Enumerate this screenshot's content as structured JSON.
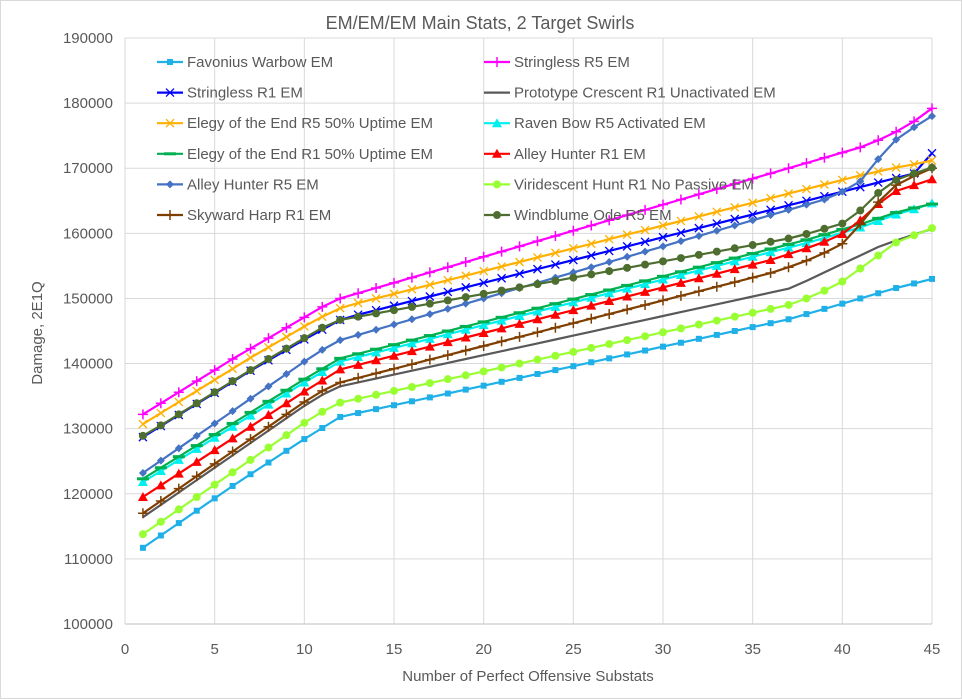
{
  "chart_data": {
    "type": "line",
    "title": "EM/EM/EM Main Stats, 2 Target Swirls",
    "xlabel": "Number of Perfect Offensive Substats",
    "ylabel": "Damage, 2E1Q",
    "xlim": [
      0,
      45
    ],
    "ylim": [
      100000,
      190000
    ],
    "xticks": [
      0,
      5,
      10,
      15,
      20,
      25,
      30,
      35,
      40,
      45
    ],
    "yticks": [
      100000,
      110000,
      120000,
      130000,
      140000,
      150000,
      160000,
      170000,
      180000,
      190000
    ],
    "grid": true,
    "legend_position": "top-inside",
    "x": [
      1,
      2,
      3,
      4,
      5,
      6,
      7,
      8,
      9,
      10,
      11,
      12,
      13,
      14,
      15,
      16,
      17,
      18,
      19,
      20,
      21,
      22,
      23,
      24,
      25,
      26,
      27,
      28,
      29,
      30,
      31,
      32,
      33,
      34,
      35,
      36,
      37,
      38,
      39,
      40,
      41,
      42,
      43,
      44,
      45
    ],
    "series": [
      {
        "name": "Favonius Warbow EM",
        "color": "#1fb0e8",
        "marker": "square",
        "values": [
          111700,
          113600,
          115500,
          117400,
          119300,
          121200,
          123000,
          124800,
          126600,
          128400,
          130100,
          131800,
          132400,
          133000,
          133600,
          134200,
          134800,
          135400,
          136000,
          136600,
          137200,
          137800,
          138400,
          139000,
          139600,
          140200,
          140800,
          141400,
          142000,
          142600,
          143200,
          143800,
          144400,
          145000,
          145600,
          146200,
          146800,
          147600,
          148400,
          149200,
          150000,
          150800,
          151600,
          152300,
          153000
        ]
      },
      {
        "name": "Stringless R5 EM",
        "color": "#ff00ff",
        "marker": "plus",
        "values": [
          132200,
          133900,
          135600,
          137300,
          139000,
          140700,
          142300,
          143900,
          145500,
          147100,
          148700,
          150000,
          150800,
          151600,
          152400,
          153200,
          154000,
          154800,
          155600,
          156400,
          157200,
          158000,
          158800,
          159600,
          160400,
          161200,
          162000,
          162800,
          163600,
          164400,
          165200,
          166000,
          166800,
          167600,
          168400,
          169200,
          170000,
          170800,
          171600,
          172400,
          173200,
          174300,
          175600,
          177200,
          179200
        ]
      },
      {
        "name": "Stringless R1 EM",
        "color": "#0000ff",
        "marker": "x",
        "values": [
          128700,
          130400,
          132100,
          133800,
          135500,
          137200,
          138900,
          140500,
          142100,
          143700,
          145200,
          146700,
          147500,
          148200,
          148900,
          149600,
          150300,
          151000,
          151700,
          152400,
          153100,
          153800,
          154500,
          155200,
          155900,
          156600,
          157300,
          158000,
          158700,
          159400,
          160100,
          160800,
          161500,
          162200,
          162900,
          163600,
          164300,
          165000,
          165700,
          166400,
          167100,
          167800,
          168500,
          169200,
          172300
        ]
      },
      {
        "name": "Prototype Crescent R1 Unactivated EM",
        "color": "#595959",
        "marker": "none",
        "values": [
          116400,
          118300,
          120200,
          122100,
          124000,
          125900,
          127800,
          129700,
          131600,
          133500,
          135200,
          136500,
          137100,
          137700,
          138300,
          138900,
          139500,
          140100,
          140700,
          141300,
          141900,
          142500,
          143100,
          143700,
          144300,
          144900,
          145500,
          146100,
          146700,
          147300,
          147900,
          148500,
          149100,
          149700,
          150300,
          150900,
          151500,
          152700,
          154000,
          155300,
          156600,
          157900,
          158900,
          159800,
          160700
        ]
      },
      {
        "name": "Elegy of the End R5 50% Uptime EM",
        "color": "#ffb000",
        "marker": "x",
        "values": [
          130700,
          132400,
          134100,
          135800,
          137500,
          139200,
          140900,
          142500,
          144100,
          145700,
          147200,
          148500,
          149300,
          150000,
          150700,
          151400,
          152100,
          152800,
          153500,
          154200,
          154900,
          155600,
          156300,
          157000,
          157700,
          158400,
          159100,
          159800,
          160500,
          161200,
          161900,
          162600,
          163300,
          164000,
          164700,
          165400,
          166100,
          166800,
          167500,
          168200,
          168900,
          169500,
          170100,
          170600,
          171200
        ]
      },
      {
        "name": "Raven Bow R5 Activated EM",
        "color": "#00f0f0",
        "marker": "triangle",
        "values": [
          121800,
          123500,
          125200,
          126900,
          128600,
          130300,
          132000,
          133700,
          135400,
          137100,
          138700,
          140300,
          141000,
          141700,
          142400,
          143100,
          143800,
          144500,
          145200,
          145900,
          146600,
          147300,
          148000,
          148700,
          149400,
          150100,
          150800,
          151500,
          152200,
          152900,
          153600,
          154300,
          155000,
          155700,
          156400,
          157100,
          157800,
          158500,
          159300,
          160100,
          160900,
          161900,
          162900,
          163700,
          164600
        ]
      },
      {
        "name": "Elegy of the End R1 50% Uptime EM",
        "color": "#00b050",
        "marker": "dash",
        "values": [
          122300,
          124000,
          125700,
          127400,
          129100,
          130800,
          132500,
          134200,
          135900,
          137600,
          139200,
          140800,
          141500,
          142200,
          142900,
          143600,
          144300,
          145000,
          145700,
          146400,
          147100,
          147800,
          148500,
          149200,
          149900,
          150600,
          151300,
          152000,
          152700,
          153400,
          154100,
          154800,
          155500,
          156200,
          156900,
          157600,
          158300,
          159000,
          159800,
          160600,
          161400,
          162300,
          163200,
          163900,
          164500
        ]
      },
      {
        "name": "Alley Hunter R1 EM",
        "color": "#ff0000",
        "marker": "triangle",
        "values": [
          119500,
          121300,
          123100,
          124900,
          126700,
          128500,
          130300,
          132100,
          133900,
          135700,
          137400,
          139100,
          139800,
          140500,
          141200,
          141900,
          142600,
          143300,
          144000,
          144700,
          145400,
          146100,
          146800,
          147500,
          148200,
          148900,
          149600,
          150300,
          151000,
          151700,
          152400,
          153100,
          153800,
          154500,
          155200,
          155900,
          156800,
          157700,
          158700,
          159900,
          162000,
          164500,
          166500,
          167400,
          168300
        ]
      },
      {
        "name": "Alley Hunter R5 EM",
        "color": "#4472c4",
        "marker": "diamond",
        "values": [
          123200,
          125100,
          127000,
          128900,
          130800,
          132700,
          134600,
          136500,
          138400,
          140300,
          142100,
          143600,
          144400,
          145200,
          146000,
          146800,
          147600,
          148400,
          149200,
          150000,
          150800,
          151600,
          152400,
          153200,
          154000,
          154800,
          155600,
          156400,
          157200,
          158000,
          158800,
          159600,
          160400,
          161200,
          162000,
          162800,
          163600,
          164400,
          165200,
          166400,
          168000,
          171400,
          174400,
          176300,
          178000
        ]
      },
      {
        "name": "Viridescent Hunt R1 No Passive EM",
        "color": "#99ff33",
        "marker": "circle",
        "values": [
          113800,
          115700,
          117600,
          119500,
          121400,
          123300,
          125200,
          127100,
          129000,
          130900,
          132600,
          134000,
          134600,
          135200,
          135800,
          136400,
          137000,
          137600,
          138200,
          138800,
          139400,
          140000,
          140600,
          141200,
          141800,
          142400,
          143000,
          143600,
          144200,
          144800,
          145400,
          146000,
          146600,
          147200,
          147800,
          148400,
          149000,
          150000,
          151200,
          152600,
          154600,
          156600,
          158600,
          159700,
          160800
        ]
      },
      {
        "name": "Skyward Harp R1 EM",
        "color": "#7f3f00",
        "marker": "plus",
        "values": [
          117000,
          118900,
          120800,
          122700,
          124600,
          126500,
          128400,
          130300,
          132200,
          134100,
          135800,
          137100,
          137800,
          138500,
          139200,
          139900,
          140600,
          141300,
          142000,
          142700,
          143400,
          144100,
          144800,
          145500,
          146200,
          146900,
          147600,
          148300,
          149000,
          149700,
          150400,
          151100,
          151800,
          152500,
          153200,
          153900,
          154800,
          155800,
          157000,
          158400,
          161400,
          164800,
          167400,
          168800,
          170000
        ]
      },
      {
        "name": "Windblume Ode R5 EM",
        "color": "#4e6e30",
        "marker": "circle",
        "values": [
          128900,
          130500,
          132200,
          133900,
          135600,
          137300,
          139000,
          140700,
          142300,
          143900,
          145500,
          146700,
          147200,
          147700,
          148200,
          148700,
          149200,
          149700,
          150200,
          150700,
          151200,
          151700,
          152200,
          152700,
          153200,
          153700,
          154200,
          154700,
          155200,
          155700,
          156200,
          156700,
          157200,
          157700,
          158200,
          158700,
          159200,
          159900,
          160700,
          161500,
          163500,
          166200,
          168200,
          169200,
          170100
        ]
      }
    ]
  }
}
